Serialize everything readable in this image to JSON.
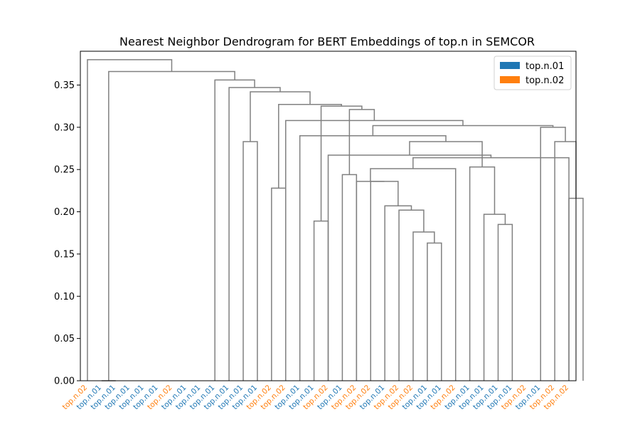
{
  "chart_data": {
    "type": "dendrogram",
    "title": "Nearest Neighbor Dendrogram for BERT Embeddings of top.n in SEMCOR",
    "xlabel": "",
    "ylabel": "",
    "ylim": [
      0,
      0.39
    ],
    "yticks": [
      "0.00",
      "0.05",
      "0.10",
      "0.15",
      "0.20",
      "0.25",
      "0.30",
      "0.35"
    ],
    "grid": false,
    "legend_position": "top-right",
    "legend": [
      {
        "label": "top.n.01",
        "color": "#1f77b4"
      },
      {
        "label": "top.n.02",
        "color": "#ff7f0e"
      }
    ],
    "link_color": "#808080",
    "leaves": [
      {
        "label": "top.n.02",
        "sense": "top.n.02"
      },
      {
        "label": "top.n.01",
        "sense": "top.n.01"
      },
      {
        "label": "top.n.01",
        "sense": "top.n.01"
      },
      {
        "label": "top.n.01",
        "sense": "top.n.01"
      },
      {
        "label": "top.n.01",
        "sense": "top.n.01"
      },
      {
        "label": "top.n.01",
        "sense": "top.n.01"
      },
      {
        "label": "top.n.02",
        "sense": "top.n.02"
      },
      {
        "label": "top.n.01",
        "sense": "top.n.01"
      },
      {
        "label": "top.n.01",
        "sense": "top.n.01"
      },
      {
        "label": "top.n.01",
        "sense": "top.n.01"
      },
      {
        "label": "top.n.01",
        "sense": "top.n.01"
      },
      {
        "label": "top.n.01",
        "sense": "top.n.01"
      },
      {
        "label": "top.n.01",
        "sense": "top.n.01"
      },
      {
        "label": "top.n.02",
        "sense": "top.n.02"
      },
      {
        "label": "top.n.02",
        "sense": "top.n.02"
      },
      {
        "label": "top.n.01",
        "sense": "top.n.01"
      },
      {
        "label": "top.n.01",
        "sense": "top.n.01"
      },
      {
        "label": "top.n.02",
        "sense": "top.n.02"
      },
      {
        "label": "top.n.01",
        "sense": "top.n.01"
      },
      {
        "label": "top.n.02",
        "sense": "top.n.02"
      },
      {
        "label": "top.n.02",
        "sense": "top.n.02"
      },
      {
        "label": "top.n.01",
        "sense": "top.n.01"
      },
      {
        "label": "top.n.02",
        "sense": "top.n.02"
      },
      {
        "label": "top.n.02",
        "sense": "top.n.02"
      },
      {
        "label": "top.n.01",
        "sense": "top.n.01"
      },
      {
        "label": "top.n.01",
        "sense": "top.n.01"
      },
      {
        "label": "top.n.02",
        "sense": "top.n.02"
      },
      {
        "label": "top.n.01",
        "sense": "top.n.01"
      },
      {
        "label": "top.n.01",
        "sense": "top.n.01"
      },
      {
        "label": "top.n.01",
        "sense": "top.n.01"
      },
      {
        "label": "top.n.01",
        "sense": "top.n.01"
      },
      {
        "label": "top.n.02",
        "sense": "top.n.02"
      },
      {
        "label": "top.n.01",
        "sense": "top.n.01"
      },
      {
        "label": "top.n.02",
        "sense": "top.n.02"
      },
      {
        "label": "top.n.02",
        "sense": "top.n.02"
      }
    ],
    "links": [
      {
        "a": 1,
        "b": 2,
        "h": 0.0
      },
      {
        "a": 24,
        "b": 25,
        "h": 0.163
      },
      {
        "a": 23,
        "b": "n1",
        "h": 0.176
      },
      {
        "a": 29,
        "b": 30,
        "h": 0.185
      },
      {
        "a": 16,
        "b": 17,
        "h": 0.189
      },
      {
        "a": 28,
        "b": "n3",
        "h": 0.197
      },
      {
        "a": 22,
        "b": "n2",
        "h": 0.202
      },
      {
        "a": 21,
        "b": "n6",
        "h": 0.207
      },
      {
        "a": 34,
        "b": 35,
        "h": 0.216
      },
      {
        "a": 13,
        "b": 14,
        "h": 0.228
      },
      {
        "a": 20,
        "b": "n7",
        "h": 0.236
      },
      {
        "a": 19,
        "b": "n10",
        "h": 0.236
      },
      {
        "a": 18,
        "b": 19,
        "h": 0.244
      },
      {
        "a": "n11",
        "b": 26,
        "h": 0.251
      },
      {
        "a": 27,
        "b": "n5",
        "h": 0.253
      },
      {
        "a": "n13",
        "b": "n13b",
        "h": 0.264
      },
      {
        "a": 17,
        "b": "n15",
        "h": 0.267
      },
      {
        "a": 11,
        "b": 12,
        "h": 0.283
      },
      {
        "a": 33,
        "b": "n8",
        "h": 0.283
      },
      {
        "a": "n16",
        "b": "n14",
        "h": 0.283
      },
      {
        "a": 15,
        "b": "n19",
        "h": 0.29
      },
      {
        "a": 32,
        "b": "n18",
        "h": 0.3
      },
      {
        "a": "n20",
        "b": "n21",
        "h": 0.302
      },
      {
        "a": 14,
        "b": "n22",
        "h": 0.308
      },
      {
        "a": "n12",
        "b": "n23",
        "h": 0.321
      },
      {
        "a": "n4",
        "b": "n24",
        "h": 0.325
      },
      {
        "a": "n9",
        "b": "n25",
        "h": 0.327
      },
      {
        "a": "n17",
        "b": "n26",
        "h": 0.342
      },
      {
        "a": 10,
        "b": "n27",
        "h": 0.347
      },
      {
        "a": 9,
        "b": "n28",
        "h": 0.356
      },
      {
        "a": "n0",
        "b": "n29",
        "h": 0.366
      },
      {
        "a": 0,
        "b": "n30",
        "h": 0.38
      }
    ]
  }
}
